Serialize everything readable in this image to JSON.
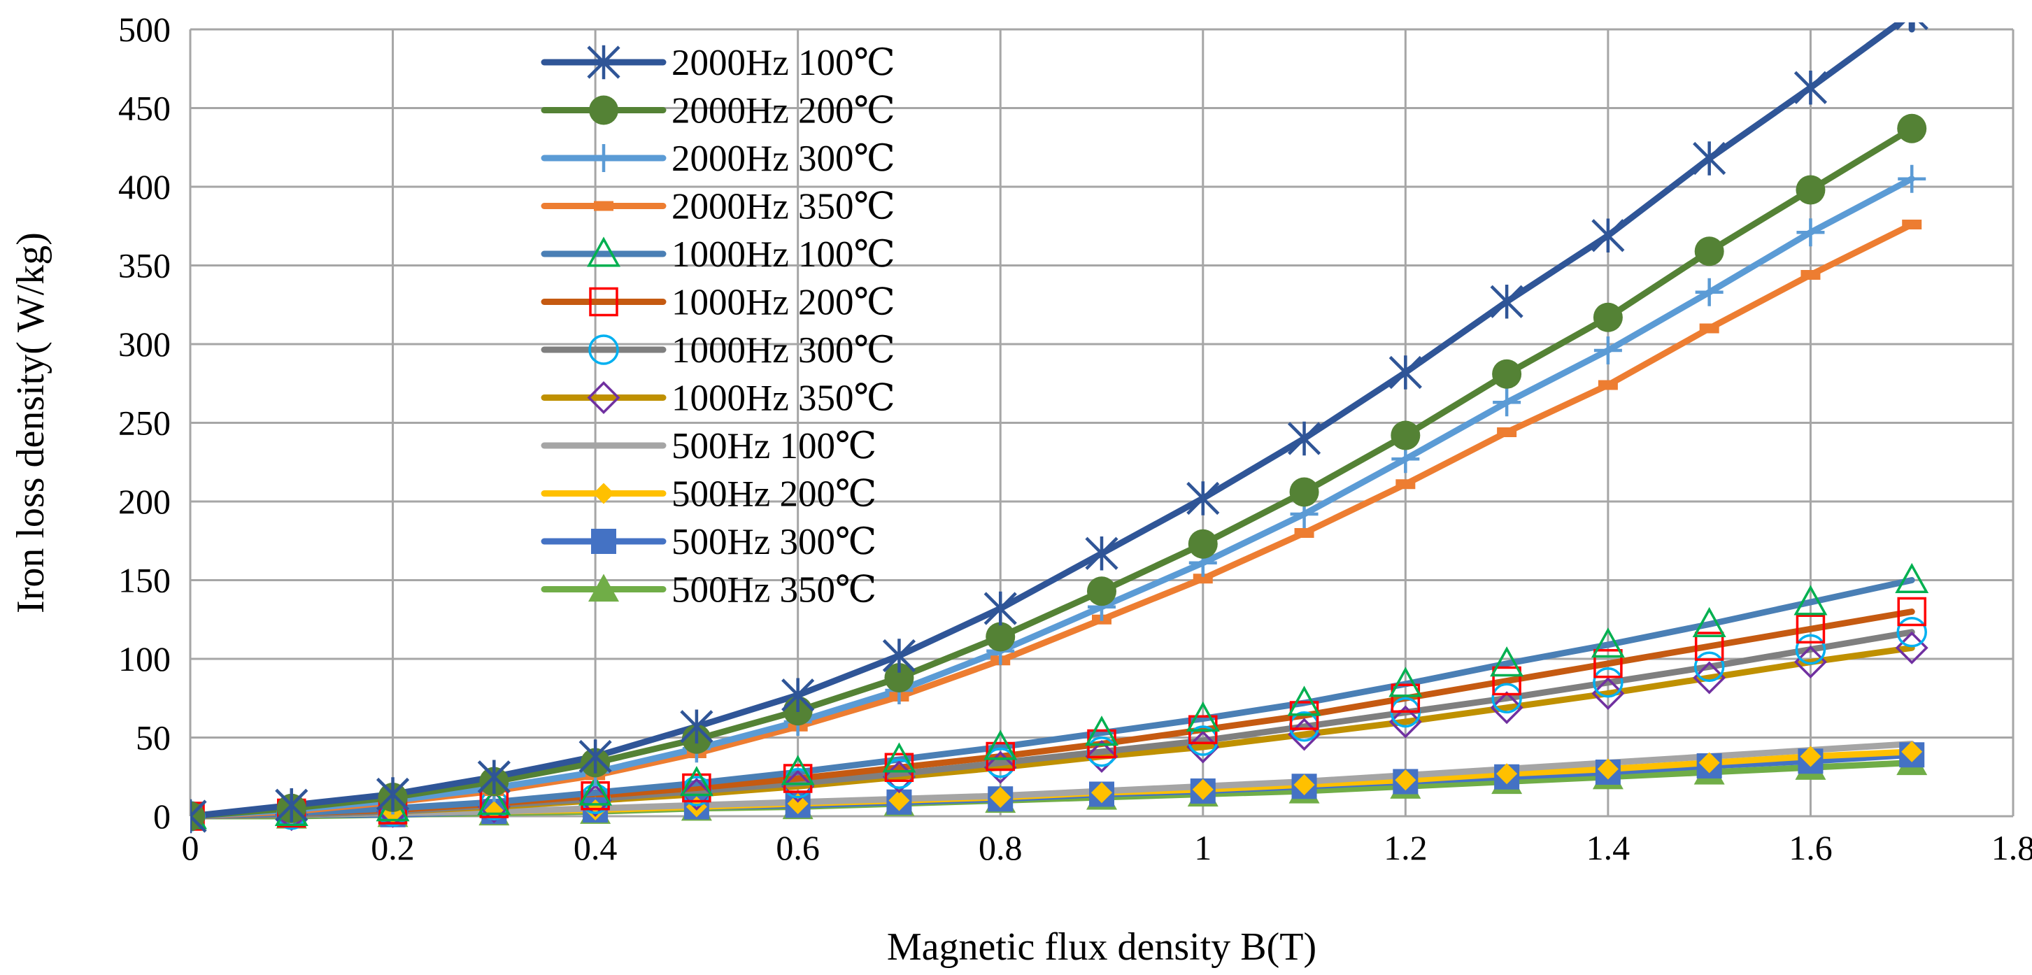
{
  "chart_data": {
    "type": "line",
    "title": "",
    "xlabel": "Magnetic flux density B(T)",
    "ylabel": "Iron loss density( W/kg)",
    "xlim": [
      0,
      1.8
    ],
    "ylim": [
      0,
      500
    ],
    "x_ticks": [
      "0",
      "0.2",
      "0.4",
      "0.6",
      "0.8",
      "1",
      "1.2",
      "1.4",
      "1.6",
      "1.8"
    ],
    "y_ticks": [
      "0",
      "50",
      "100",
      "150",
      "200",
      "250",
      "300",
      "350",
      "400",
      "450",
      "500"
    ],
    "grid": true,
    "legend_position": "top-center",
    "x": [
      0,
      0.1,
      0.2,
      0.3,
      0.4,
      0.5,
      0.6,
      0.7,
      0.8,
      0.9,
      1.0,
      1.1,
      1.2,
      1.3,
      1.4,
      1.5,
      1.6,
      1.7
    ],
    "series": [
      {
        "name": "2000Hz 100℃",
        "color": "#2f5597",
        "marker": "asterisk",
        "line_x_end": 1.7,
        "line_y_end": 500,
        "values": [
          0,
          7,
          14,
          25,
          38,
          57,
          77,
          102,
          132,
          167,
          202,
          240,
          282,
          327,
          369,
          418,
          463,
          510
        ]
      },
      {
        "name": "2000Hz 200℃",
        "color": "#548235",
        "marker": "circle-filled",
        "values": [
          0,
          5,
          12,
          22,
          34,
          49,
          67,
          88,
          114,
          143,
          173,
          206,
          242,
          281,
          317,
          359,
          398,
          437
        ]
      },
      {
        "name": "2000Hz 300℃",
        "color": "#5b9bd5",
        "marker": "plus",
        "values": [
          0,
          4,
          10,
          18,
          28,
          43,
          60,
          80,
          105,
          133,
          161,
          192,
          227,
          263,
          296,
          333,
          371,
          405
        ]
      },
      {
        "name": "2000Hz 350℃",
        "color": "#ed7d31",
        "marker": "dash",
        "values": [
          0,
          3,
          9,
          16,
          26,
          40,
          57,
          76,
          99,
          125,
          151,
          180,
          211,
          244,
          274,
          310,
          344,
          376
        ]
      },
      {
        "name": "1000Hz 100℃",
        "color": "#4a7fb5",
        "marker": "triangle-open",
        "marker_color": "#00b050",
        "values": [
          0,
          2,
          5,
          9,
          15,
          21,
          28,
          36,
          44,
          53,
          62,
          72,
          84,
          97,
          109,
          122,
          136,
          150
        ]
      },
      {
        "name": "1000Hz 200℃",
        "color": "#c55a11",
        "marker": "square-open",
        "marker_color": "#ff0000",
        "values": [
          0,
          2,
          4,
          8,
          13,
          18,
          24,
          31,
          38,
          46,
          55,
          64,
          75,
          86,
          97,
          108,
          119,
          130
        ]
      },
      {
        "name": "1000Hz 300℃",
        "color": "#7f7f7f",
        "marker": "circle-open",
        "marker_color": "#00b0f0",
        "values": [
          0,
          1,
          3,
          7,
          11,
          16,
          21,
          27,
          34,
          41,
          48,
          57,
          66,
          75,
          85,
          95,
          106,
          117
        ]
      },
      {
        "name": "1000Hz 350℃",
        "color": "#bf9000",
        "marker": "diamond-open",
        "marker_color": "#7030a0",
        "values": [
          0,
          1,
          3,
          6,
          10,
          14,
          19,
          25,
          31,
          38,
          44,
          52,
          60,
          69,
          78,
          88,
          98,
          107
        ]
      },
      {
        "name": "500Hz 100℃",
        "color": "#a5a5a5",
        "marker": "none",
        "values": [
          0,
          1,
          2,
          3,
          5,
          7,
          9,
          11,
          13,
          16,
          19,
          22,
          26,
          30,
          34,
          38,
          42,
          46
        ]
      },
      {
        "name": "500Hz 200℃",
        "color": "#ffc000",
        "marker": "diamond-filled",
        "values": [
          0,
          1,
          2,
          3,
          4,
          6,
          8,
          10,
          12,
          15,
          17,
          20,
          23,
          27,
          30,
          34,
          38,
          41
        ]
      },
      {
        "name": "500Hz 300℃",
        "color": "#4472c4",
        "marker": "square-filled",
        "values": [
          0,
          1,
          1,
          3,
          4,
          6,
          7,
          9,
          11,
          14,
          16,
          19,
          22,
          25,
          28,
          32,
          35,
          39
        ]
      },
      {
        "name": "500Hz 350℃",
        "color": "#70ad47",
        "marker": "triangle-filled",
        "values": [
          0,
          0,
          1,
          2,
          3,
          5,
          6,
          8,
          10,
          12,
          14,
          16,
          19,
          22,
          25,
          28,
          31,
          34
        ]
      }
    ]
  }
}
